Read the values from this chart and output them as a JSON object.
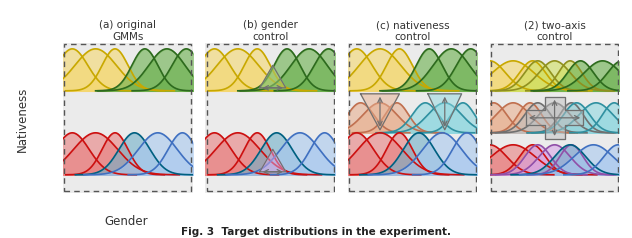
{
  "panels": [
    {
      "title": "(a) original\nGMMs"
    },
    {
      "title": "(b) gender\ncontrol"
    },
    {
      "title": "(c) nativeness\ncontrol"
    },
    {
      "title": "(2) two-axis\ncontrol"
    }
  ],
  "xlabel": "Gender",
  "ylabel": "Nativeness",
  "caption": "Fig. 3  Target distributions in the experiment.",
  "bg_color": "#ebebeb",
  "colors": {
    "yellow_fill": "#f5d76e",
    "yellow_line": "#c8a800",
    "green_dark_fill": "#6ab04c",
    "green_dark_line": "#2d6a1e",
    "green_light_fill": "#a8d080",
    "green_light_line": "#6a9e40",
    "red_fill": "#e88080",
    "red_line": "#cc1010",
    "teal_fill": "#70b0c8",
    "teal_line": "#006080",
    "blue_fill": "#a8c8f0",
    "blue_line": "#4070c0",
    "salmon_fill": "#e8b090",
    "salmon_line": "#c07050",
    "cyan_fill": "#90d8e0",
    "cyan_line": "#3090a0",
    "purple_fill": "#d8a8e8",
    "purple_line": "#9050a8",
    "gray_fill": "#c0c0c0",
    "gray_line": "#707070",
    "yellow_green_fill": "#d0e060",
    "yellow_green_line": "#909020"
  }
}
